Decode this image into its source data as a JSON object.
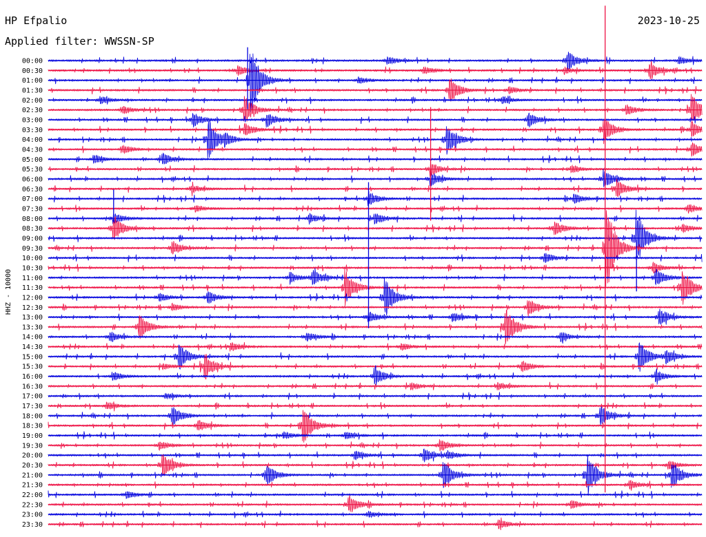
{
  "header": {
    "station": "HP Efpalio",
    "date": "2023-10-25",
    "filter": "Applied filter: WWSSN-SP"
  },
  "chart_data": {
    "type": "line",
    "title": "HP Efpalio",
    "subtitle": "Applied filter: WWSSN-SP",
    "ylabel": "HHZ - 10000",
    "xlabel": "",
    "colors": [
      "#0000dd",
      "#ee1144"
    ],
    "rows": [
      "00:00",
      "00:30",
      "01:00",
      "01:30",
      "02:00",
      "02:30",
      "03:00",
      "03:30",
      "04:00",
      "04:30",
      "05:00",
      "05:30",
      "06:00",
      "06:30",
      "07:00",
      "07:30",
      "08:00",
      "08:30",
      "09:00",
      "09:30",
      "10:00",
      "10:30",
      "11:00",
      "11:30",
      "12:00",
      "12:30",
      "13:00",
      "13:30",
      "14:00",
      "14:30",
      "15:00",
      "15:30",
      "16:00",
      "16:30",
      "17:00",
      "17:30",
      "18:00",
      "18:30",
      "19:00",
      "19:30",
      "20:00",
      "20:30",
      "21:00",
      "21:30",
      "22:00",
      "22:30",
      "23:00",
      "23:30"
    ],
    "x_range_minutes": [
      0,
      30
    ],
    "events": [
      {
        "row": 0,
        "t": 0.795,
        "amp": 14
      },
      {
        "row": 0,
        "t": 0.52,
        "amp": 5
      },
      {
        "row": 0,
        "t": 0.965,
        "amp": 5
      },
      {
        "row": 1,
        "t": 0.29,
        "amp": 7
      },
      {
        "row": 1,
        "t": 0.92,
        "amp": 12
      },
      {
        "row": 1,
        "t": 0.575,
        "amp": 5
      },
      {
        "row": 1,
        "t": 0.79,
        "amp": 4
      },
      {
        "row": 2,
        "t": 0.475,
        "amp": 4
      },
      {
        "row": 2,
        "t": 0.31,
        "amp": 50
      },
      {
        "row": 3,
        "t": 0.615,
        "amp": 18
      },
      {
        "row": 3,
        "t": 0.705,
        "amp": 5
      },
      {
        "row": 4,
        "t": 0.695,
        "amp": 5
      },
      {
        "row": 4,
        "t": 0.08,
        "amp": 5
      },
      {
        "row": 5,
        "t": 0.3,
        "amp": 22
      },
      {
        "row": 5,
        "t": 0.115,
        "amp": 5
      },
      {
        "row": 5,
        "t": 0.885,
        "amp": 7
      },
      {
        "row": 5,
        "t": 0.985,
        "amp": 22
      },
      {
        "row": 6,
        "t": 0.222,
        "amp": 10
      },
      {
        "row": 6,
        "t": 0.335,
        "amp": 10
      },
      {
        "row": 6,
        "t": 0.735,
        "amp": 10
      },
      {
        "row": 7,
        "t": 0.3,
        "amp": 10
      },
      {
        "row": 7,
        "t": 0.85,
        "amp": 20
      },
      {
        "row": 7,
        "t": 0.985,
        "amp": 10
      },
      {
        "row": 8,
        "t": 0.245,
        "amp": 30
      },
      {
        "row": 8,
        "t": 0.27,
        "amp": 7
      },
      {
        "row": 8,
        "t": 0.61,
        "amp": 22
      },
      {
        "row": 9,
        "t": 0.115,
        "amp": 5
      },
      {
        "row": 9,
        "t": 0.985,
        "amp": 10
      },
      {
        "row": 10,
        "t": 0.07,
        "amp": 6
      },
      {
        "row": 10,
        "t": 0.175,
        "amp": 8
      },
      {
        "row": 11,
        "t": 0.585,
        "amp": 10
      },
      {
        "row": 11,
        "t": 0.8,
        "amp": 6
      },
      {
        "row": 12,
        "t": 0.585,
        "amp": 10
      },
      {
        "row": 12,
        "t": 0.85,
        "amp": 14
      },
      {
        "row": 13,
        "t": 0.22,
        "amp": 6
      },
      {
        "row": 13,
        "t": 0.87,
        "amp": 14
      },
      {
        "row": 14,
        "t": 0.49,
        "amp": 10
      },
      {
        "row": 14,
        "t": 0.805,
        "amp": 6
      },
      {
        "row": 15,
        "t": 0.225,
        "amp": 5
      },
      {
        "row": 15,
        "t": 0.98,
        "amp": 6
      },
      {
        "row": 16,
        "t": 0.1,
        "amp": 8
      },
      {
        "row": 16,
        "t": 0.4,
        "amp": 6
      },
      {
        "row": 16,
        "t": 0.5,
        "amp": 8
      },
      {
        "row": 17,
        "t": 0.1,
        "amp": 20
      },
      {
        "row": 17,
        "t": 0.775,
        "amp": 10
      },
      {
        "row": 17,
        "t": 0.97,
        "amp": 6
      },
      {
        "row": 18,
        "t": 0.9,
        "amp": 40
      },
      {
        "row": 19,
        "t": 0.19,
        "amp": 10
      },
      {
        "row": 19,
        "t": 0.855,
        "amp": 60
      },
      {
        "row": 20,
        "t": 0.76,
        "amp": 7
      },
      {
        "row": 21,
        "t": 0.925,
        "amp": 8
      },
      {
        "row": 22,
        "t": 0.37,
        "amp": 7
      },
      {
        "row": 22,
        "t": 0.405,
        "amp": 10
      },
      {
        "row": 22,
        "t": 0.93,
        "amp": 12
      },
      {
        "row": 23,
        "t": 0.455,
        "amp": 25
      },
      {
        "row": 23,
        "t": 0.97,
        "amp": 28
      },
      {
        "row": 24,
        "t": 0.515,
        "amp": 30
      },
      {
        "row": 24,
        "t": 0.17,
        "amp": 6
      },
      {
        "row": 24,
        "t": 0.245,
        "amp": 8
      },
      {
        "row": 25,
        "t": 0.735,
        "amp": 12
      },
      {
        "row": 25,
        "t": 0.19,
        "amp": 5
      },
      {
        "row": 26,
        "t": 0.49,
        "amp": 8
      },
      {
        "row": 26,
        "t": 0.62,
        "amp": 6
      },
      {
        "row": 26,
        "t": 0.935,
        "amp": 12
      },
      {
        "row": 27,
        "t": 0.14,
        "amp": 18
      },
      {
        "row": 27,
        "t": 0.7,
        "amp": 28
      },
      {
        "row": 28,
        "t": 0.095,
        "amp": 6
      },
      {
        "row": 28,
        "t": 0.395,
        "amp": 6
      },
      {
        "row": 28,
        "t": 0.785,
        "amp": 6
      },
      {
        "row": 29,
        "t": 0.28,
        "amp": 6
      },
      {
        "row": 29,
        "t": 0.54,
        "amp": 5
      },
      {
        "row": 30,
        "t": 0.2,
        "amp": 20
      },
      {
        "row": 30,
        "t": 0.905,
        "amp": 22
      },
      {
        "row": 30,
        "t": 0.945,
        "amp": 10
      },
      {
        "row": 31,
        "t": 0.24,
        "amp": 18
      },
      {
        "row": 31,
        "t": 0.175,
        "amp": 4
      },
      {
        "row": 31,
        "t": 0.725,
        "amp": 8
      },
      {
        "row": 32,
        "t": 0.5,
        "amp": 12
      },
      {
        "row": 32,
        "t": 0.1,
        "amp": 5
      },
      {
        "row": 32,
        "t": 0.93,
        "amp": 8
      },
      {
        "row": 33,
        "t": 0.69,
        "amp": 5
      },
      {
        "row": 33,
        "t": 0.555,
        "amp": 5
      },
      {
        "row": 34,
        "t": 0.18,
        "amp": 4
      },
      {
        "row": 35,
        "t": 0.09,
        "amp": 5
      },
      {
        "row": 36,
        "t": 0.19,
        "amp": 14
      },
      {
        "row": 36,
        "t": 0.845,
        "amp": 14
      },
      {
        "row": 37,
        "t": 0.39,
        "amp": 30
      },
      {
        "row": 37,
        "t": 0.23,
        "amp": 8
      },
      {
        "row": 38,
        "t": 0.36,
        "amp": 5
      },
      {
        "row": 38,
        "t": 0.455,
        "amp": 5
      },
      {
        "row": 39,
        "t": 0.6,
        "amp": 8
      },
      {
        "row": 39,
        "t": 0.17,
        "amp": 6
      },
      {
        "row": 40,
        "t": 0.575,
        "amp": 10
      },
      {
        "row": 40,
        "t": 0.47,
        "amp": 6
      },
      {
        "row": 40,
        "t": 0.61,
        "amp": 6
      },
      {
        "row": 41,
        "t": 0.175,
        "amp": 18
      },
      {
        "row": 41,
        "t": 0.95,
        "amp": 6
      },
      {
        "row": 42,
        "t": 0.335,
        "amp": 14
      },
      {
        "row": 42,
        "t": 0.605,
        "amp": 20
      },
      {
        "row": 42,
        "t": 0.825,
        "amp": 30
      },
      {
        "row": 42,
        "t": 0.955,
        "amp": 20
      },
      {
        "row": 43,
        "t": 0.89,
        "amp": 6
      },
      {
        "row": 44,
        "t": 0.12,
        "amp": 5
      },
      {
        "row": 45,
        "t": 0.46,
        "amp": 12
      },
      {
        "row": 45,
        "t": 0.8,
        "amp": 6
      },
      {
        "row": 46,
        "t": 0.49,
        "amp": 4
      },
      {
        "row": 47,
        "t": 0.69,
        "amp": 6
      }
    ],
    "spikes": [
      {
        "row": 2,
        "t": 0.305,
        "up": 48,
        "down": 42
      },
      {
        "row": 19,
        "t": 0.852,
        "up": 352,
        "down": 355
      },
      {
        "row": 20,
        "t": 0.49,
        "up": 110,
        "down": 102
      },
      {
        "row": 11,
        "t": 0.585,
        "up": 90,
        "down": 75
      },
      {
        "row": 16,
        "t": 0.1,
        "up": 42,
        "down": 5
      },
      {
        "row": 22,
        "t": 0.9,
        "up": 55,
        "down": 20
      }
    ]
  }
}
